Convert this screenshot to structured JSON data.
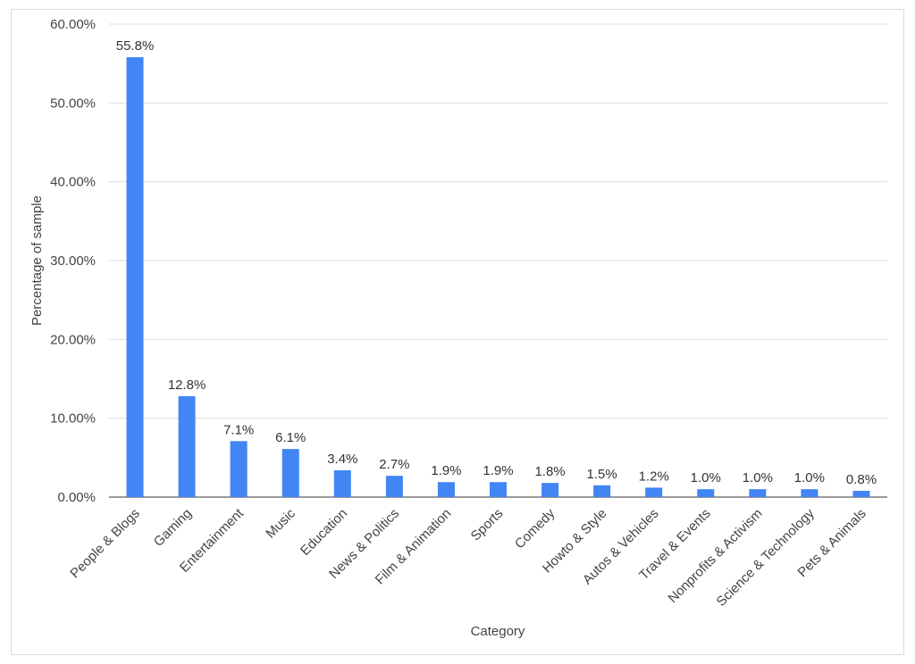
{
  "chart_data": {
    "type": "bar",
    "title": "",
    "xlabel": "Category",
    "ylabel": "Percentage of sample",
    "ylim": [
      0,
      60
    ],
    "yticks": [
      "0.00%",
      "10.00%",
      "20.00%",
      "30.00%",
      "40.00%",
      "50.00%",
      "60.00%"
    ],
    "grid": true,
    "bar_color": "#4285f4",
    "categories": [
      "People & Blogs",
      "Gaming",
      "Entertainment",
      "Music",
      "Education",
      "News & Politics",
      "Film & Animation",
      "Sports",
      "Comedy",
      "Howto & Style",
      "Autos & Vehicles",
      "Travel & Events",
      "Nonprofits & Activism",
      "Science & Technology",
      "Pets & Animals"
    ],
    "values": [
      55.8,
      12.8,
      7.1,
      6.1,
      3.4,
      2.7,
      1.9,
      1.9,
      1.8,
      1.5,
      1.2,
      1.0,
      1.0,
      1.0,
      0.8
    ],
    "data_labels": [
      "55.8%",
      "12.8%",
      "7.1%",
      "6.1%",
      "3.4%",
      "2.7%",
      "1.9%",
      "1.9%",
      "1.8%",
      "1.5%",
      "1.2%",
      "1.0%",
      "1.0%",
      "1.0%",
      "0.8%"
    ]
  }
}
